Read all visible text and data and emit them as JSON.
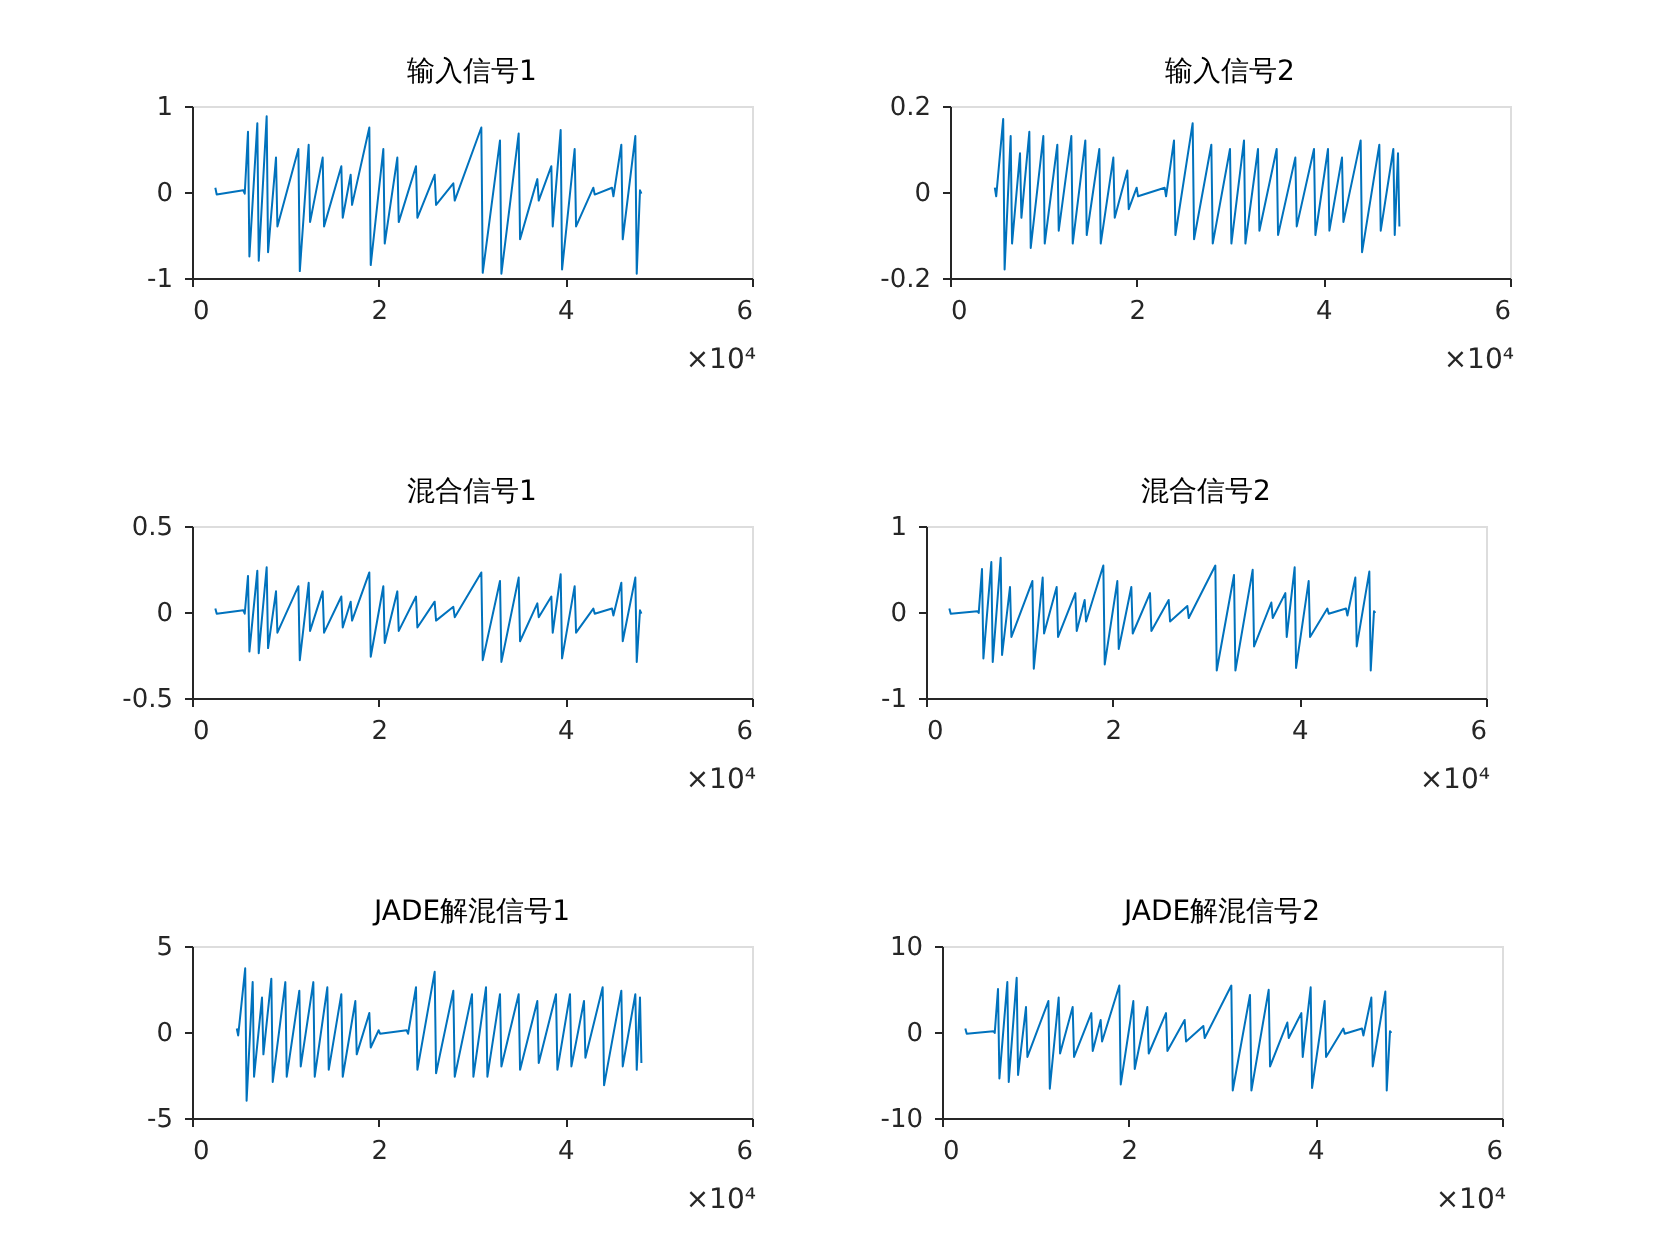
{
  "chart_data": [
    {
      "type": "line",
      "title": "输入信号1",
      "color": "#0072bd",
      "xlim": [
        0,
        6
      ],
      "ylim": [
        -1,
        1
      ],
      "grid": false,
      "marker": "none",
      "line_style": "solid",
      "annotations": [
        "×10⁴"
      ],
      "xticks": [
        0,
        2,
        4,
        6
      ],
      "yticks": [
        -1,
        0,
        1
      ],
      "x": [
        0.25,
        0.265,
        0.55,
        0.565,
        0.6,
        0.615,
        0.7,
        0.715,
        0.8,
        0.815,
        0.9,
        0.915,
        1.14,
        1.155,
        1.25,
        1.265,
        1.4,
        1.415,
        1.6,
        1.615,
        1.7,
        1.715,
        1.9,
        1.915,
        2.05,
        2.065,
        2.2,
        2.215,
        2.4,
        2.415,
        2.6,
        2.615,
        2.8,
        2.815,
        3.1,
        3.115,
        3.3,
        3.315,
        3.5,
        3.515,
        3.7,
        3.715,
        3.85,
        3.865,
        3.95,
        3.965,
        4.1,
        4.115,
        4.3,
        4.315,
        4.5,
        4.515,
        4.6,
        4.615,
        4.75,
        4.765,
        4.8,
        4.815
      ],
      "values": [
        0.05,
        -0.03,
        0.02,
        -0.02,
        0.7,
        -0.75,
        0.8,
        -0.8,
        0.88,
        -0.7,
        0.4,
        -0.4,
        0.5,
        -0.92,
        0.55,
        -0.35,
        0.4,
        -0.4,
        0.3,
        -0.3,
        0.2,
        -0.15,
        0.75,
        -0.85,
        0.5,
        -0.6,
        0.4,
        -0.35,
        0.3,
        -0.3,
        0.2,
        -0.15,
        0.1,
        -0.1,
        0.75,
        -0.94,
        0.6,
        -0.95,
        0.68,
        -0.55,
        0.15,
        -0.1,
        0.3,
        -0.4,
        0.72,
        -0.9,
        0.5,
        -0.4,
        0.05,
        -0.03,
        0.05,
        -0.05,
        0.55,
        -0.55,
        0.65,
        -0.95,
        0.02,
        -0.02
      ]
    },
    {
      "type": "line",
      "title": "输入信号2",
      "color": "#0072bd",
      "xlim": [
        0,
        6
      ],
      "ylim": [
        -0.2,
        0.2
      ],
      "grid": false,
      "marker": "none",
      "line_style": "solid",
      "annotations": [
        "×10⁴"
      ],
      "xticks": [
        0,
        2,
        4,
        6
      ],
      "yticks": [
        -0.2,
        0,
        0.2
      ],
      "x": [
        0.48,
        0.495,
        0.57,
        0.585,
        0.65,
        0.665,
        0.75,
        0.765,
        0.85,
        0.865,
        1,
        1.015,
        1.15,
        1.165,
        1.3,
        1.315,
        1.45,
        1.465,
        1.6,
        1.615,
        1.75,
        1.765,
        1.9,
        1.915,
        2,
        2.015,
        2.3,
        2.315,
        2.4,
        2.415,
        2.6,
        2.615,
        2.8,
        2.815,
        3,
        3.015,
        3.15,
        3.165,
        3.3,
        3.315,
        3.5,
        3.515,
        3.7,
        3.715,
        3.9,
        3.915,
        4.05,
        4.065,
        4.2,
        4.215,
        4.4,
        4.415,
        4.6,
        4.615,
        4.75,
        4.765,
        4.8,
        4.815
      ],
      "values": [
        0.01,
        -0.01,
        0.17,
        -0.18,
        0.13,
        -0.12,
        0.09,
        -0.06,
        0.14,
        -0.13,
        0.13,
        -0.12,
        0.11,
        -0.09,
        0.13,
        -0.12,
        0.12,
        -0.1,
        0.1,
        -0.12,
        0.08,
        -0.06,
        0.05,
        -0.04,
        0.01,
        -0.01,
        0.01,
        -0.01,
        0.12,
        -0.1,
        0.16,
        -0.11,
        0.11,
        -0.12,
        0.1,
        -0.12,
        0.12,
        -0.12,
        0.1,
        -0.09,
        0.1,
        -0.1,
        0.08,
        -0.08,
        0.1,
        -0.1,
        0.1,
        -0.09,
        0.08,
        -0.07,
        0.12,
        -0.14,
        0.11,
        -0.09,
        0.1,
        -0.1,
        0.09,
        -0.08
      ]
    },
    {
      "type": "line",
      "title": "混合信号1",
      "color": "#0072bd",
      "xlim": [
        0,
        6
      ],
      "ylim": [
        -0.5,
        0.5
      ],
      "grid": false,
      "marker": "none",
      "line_style": "solid",
      "annotations": [
        "×10⁴"
      ],
      "xticks": [
        0,
        2,
        4,
        6
      ],
      "yticks": [
        -0.5,
        0,
        0.5
      ],
      "x": [
        0.25,
        0.265,
        0.55,
        0.565,
        0.6,
        0.615,
        0.7,
        0.715,
        0.8,
        0.815,
        0.9,
        0.915,
        1.14,
        1.155,
        1.25,
        1.265,
        1.4,
        1.415,
        1.6,
        1.615,
        1.7,
        1.715,
        1.9,
        1.915,
        2.05,
        2.065,
        2.2,
        2.215,
        2.4,
        2.415,
        2.6,
        2.615,
        2.8,
        2.815,
        3.1,
        3.115,
        3.3,
        3.315,
        3.5,
        3.515,
        3.7,
        3.715,
        3.85,
        3.865,
        3.95,
        3.965,
        4.1,
        4.115,
        4.3,
        4.315,
        4.5,
        4.515,
        4.6,
        4.615,
        4.75,
        4.765,
        4.8,
        4.815
      ],
      "values": [
        0.02,
        -0.01,
        0.01,
        -0.01,
        0.21,
        -0.23,
        0.24,
        -0.24,
        0.26,
        -0.21,
        0.12,
        -0.12,
        0.15,
        -0.28,
        0.17,
        -0.11,
        0.12,
        -0.12,
        0.09,
        -0.09,
        0.06,
        -0.05,
        0.23,
        -0.26,
        0.15,
        -0.18,
        0.12,
        -0.11,
        0.09,
        -0.09,
        0.06,
        -0.05,
        0.03,
        -0.03,
        0.23,
        -0.28,
        0.18,
        -0.29,
        0.2,
        -0.17,
        0.05,
        -0.03,
        0.09,
        -0.12,
        0.22,
        -0.27,
        0.15,
        -0.12,
        0.02,
        -0.01,
        0.02,
        -0.02,
        0.17,
        -0.17,
        0.2,
        -0.29,
        0.01,
        -0.01
      ]
    },
    {
      "type": "line",
      "title": "混合信号2",
      "color": "#0072bd",
      "xlim": [
        0,
        6
      ],
      "ylim": [
        -1,
        1
      ],
      "grid": false,
      "marker": "none",
      "line_style": "solid",
      "annotations": [
        "×10⁴"
      ],
      "xticks": [
        0,
        2,
        4,
        6
      ],
      "yticks": [
        -1,
        0,
        1
      ],
      "x": [
        0.25,
        0.265,
        0.55,
        0.565,
        0.6,
        0.615,
        0.7,
        0.715,
        0.8,
        0.815,
        0.9,
        0.915,
        1.14,
        1.155,
        1.25,
        1.265,
        1.4,
        1.415,
        1.6,
        1.615,
        1.7,
        1.715,
        1.9,
        1.915,
        2.05,
        2.065,
        2.2,
        2.215,
        2.4,
        2.415,
        2.6,
        2.615,
        2.8,
        2.815,
        3.1,
        3.115,
        3.3,
        3.315,
        3.5,
        3.515,
        3.7,
        3.715,
        3.85,
        3.865,
        3.95,
        3.965,
        4.1,
        4.115,
        4.3,
        4.315,
        4.5,
        4.515,
        4.6,
        4.615,
        4.75,
        4.765,
        4.8,
        4.815
      ],
      "values": [
        0.04,
        -0.02,
        0.01,
        -0.01,
        0.5,
        -0.54,
        0.58,
        -0.58,
        0.63,
        -0.5,
        0.29,
        -0.29,
        0.36,
        -0.66,
        0.4,
        -0.25,
        0.29,
        -0.29,
        0.22,
        -0.22,
        0.14,
        -0.11,
        0.54,
        -0.61,
        0.36,
        -0.43,
        0.29,
        -0.25,
        0.22,
        -0.22,
        0.14,
        -0.11,
        0.07,
        -0.07,
        0.54,
        -0.68,
        0.43,
        -0.68,
        0.49,
        -0.4,
        0.11,
        -0.07,
        0.22,
        -0.29,
        0.52,
        -0.65,
        0.36,
        -0.29,
        0.04,
        -0.02,
        0.04,
        -0.04,
        0.4,
        -0.4,
        0.47,
        -0.68,
        0.01,
        -0.01
      ]
    },
    {
      "type": "line",
      "title": "JADE解混信号1",
      "color": "#0072bd",
      "xlim": [
        0,
        6
      ],
      "ylim": [
        -5,
        5
      ],
      "grid": false,
      "marker": "none",
      "line_style": "solid",
      "annotations": [
        "×10⁴"
      ],
      "xticks": [
        0,
        2,
        4,
        6
      ],
      "yticks": [
        -5,
        0,
        5
      ],
      "x": [
        0.48,
        0.495,
        0.57,
        0.585,
        0.65,
        0.665,
        0.75,
        0.765,
        0.85,
        0.865,
        1,
        1.015,
        1.15,
        1.165,
        1.3,
        1.315,
        1.45,
        1.465,
        1.6,
        1.615,
        1.75,
        1.765,
        1.9,
        1.915,
        2,
        2.015,
        2.3,
        2.315,
        2.4,
        2.415,
        2.6,
        2.615,
        2.8,
        2.815,
        3,
        3.015,
        3.15,
        3.165,
        3.3,
        3.315,
        3.5,
        3.515,
        3.7,
        3.715,
        3.9,
        3.915,
        4.05,
        4.065,
        4.2,
        4.215,
        4.4,
        4.415,
        4.6,
        4.615,
        4.75,
        4.765,
        4.8,
        4.815
      ],
      "values": [
        0.2,
        -0.2,
        3.7,
        -4,
        2.9,
        -2.6,
        2,
        -1.3,
        3.1,
        -2.9,
        2.9,
        -2.6,
        2.4,
        -2,
        2.9,
        -2.6,
        2.6,
        -2.2,
        2.2,
        -2.6,
        1.8,
        -1.3,
        1.1,
        -0.9,
        0.1,
        -0.1,
        0.1,
        -0.1,
        2.6,
        -2.2,
        3.5,
        -2.4,
        2.4,
        -2.6,
        2.2,
        -2.6,
        2.6,
        -2.6,
        2.2,
        -2,
        2.2,
        -2.2,
        1.8,
        -1.8,
        2.2,
        -2.2,
        2.2,
        -2,
        1.8,
        -1.5,
        2.6,
        -3.1,
        2.4,
        -2,
        2.2,
        -2.2,
        2,
        -1.8
      ]
    },
    {
      "type": "line",
      "title": "JADE解混信号2",
      "color": "#0072bd",
      "xlim": [
        0,
        6
      ],
      "ylim": [
        -10,
        10
      ],
      "grid": false,
      "marker": "none",
      "line_style": "solid",
      "annotations": [
        "×10⁴"
      ],
      "xticks": [
        0,
        2,
        4,
        6
      ],
      "yticks": [
        -10,
        0,
        10
      ],
      "x": [
        0.25,
        0.265,
        0.55,
        0.565,
        0.6,
        0.615,
        0.7,
        0.715,
        0.8,
        0.815,
        0.9,
        0.915,
        1.14,
        1.155,
        1.25,
        1.265,
        1.4,
        1.415,
        1.6,
        1.615,
        1.7,
        1.715,
        1.9,
        1.915,
        2.05,
        2.065,
        2.2,
        2.215,
        2.4,
        2.415,
        2.6,
        2.615,
        2.8,
        2.815,
        3.1,
        3.115,
        3.3,
        3.315,
        3.5,
        3.515,
        3.7,
        3.715,
        3.85,
        3.865,
        3.95,
        3.965,
        4.1,
        4.115,
        4.3,
        4.315,
        4.5,
        4.515,
        4.6,
        4.615,
        4.75,
        4.765,
        4.8,
        4.815
      ],
      "values": [
        0.4,
        -0.2,
        0.1,
        -0.1,
        5,
        -5.4,
        5.8,
        -5.8,
        6.3,
        -5,
        2.9,
        -2.9,
        3.6,
        -6.6,
        4,
        -2.5,
        2.9,
        -2.9,
        2.2,
        -2.2,
        1.4,
        -1.1,
        5.4,
        -6.1,
        3.6,
        -4.3,
        2.9,
        -2.5,
        2.2,
        -2.2,
        1.4,
        -1.1,
        0.7,
        -0.7,
        5.4,
        -6.8,
        4.3,
        -6.8,
        4.9,
        -4,
        1.1,
        -0.7,
        2.2,
        -2.9,
        5.2,
        -6.5,
        3.6,
        -2.9,
        0.4,
        -0.2,
        0.4,
        -0.4,
        4,
        -4,
        4.7,
        -6.8,
        0.1,
        -0.1
      ]
    }
  ]
}
